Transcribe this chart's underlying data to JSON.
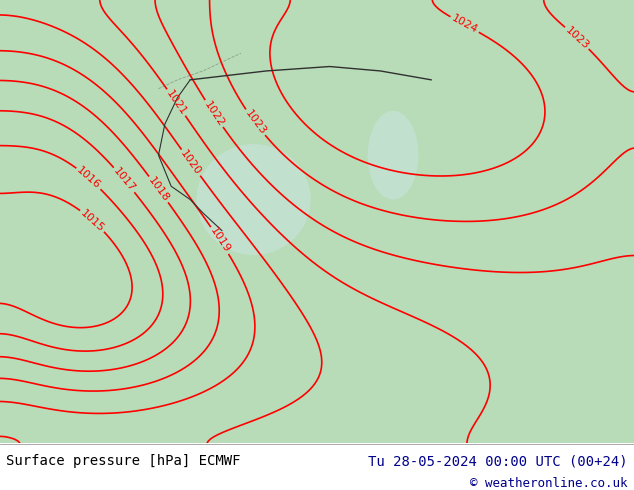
{
  "title_left": "Surface pressure [hPa] ECMWF",
  "title_right": "Tu 28-05-2024 00:00 UTC (00+24)",
  "copyright": "© weatheronline.co.uk",
  "bg_color": "#c8e6c8",
  "map_bg": "#c8f0c8",
  "footer_bg": "#ffffff",
  "footer_text_color": "#000000",
  "footer_right_color": "#00008B",
  "contour_color": "#ff0000",
  "land_color": "#c8e6c8",
  "sea_color": "#b0d0f0",
  "border_color": "#404040",
  "label_color": "#ff0000",
  "label_fontsize": 8,
  "footer_fontsize": 10,
  "fig_width": 6.34,
  "fig_height": 4.9,
  "dpi": 100
}
